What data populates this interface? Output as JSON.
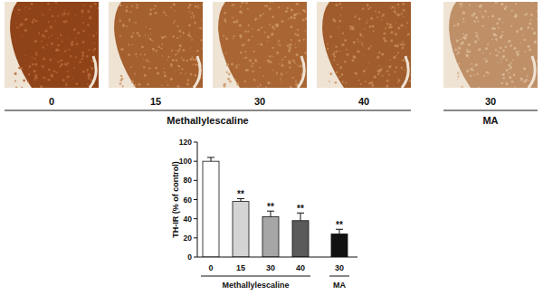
{
  "image_row": {
    "labels": [
      "0",
      "15",
      "30",
      "40",
      "30"
    ],
    "groups": [
      "Methallylescaline",
      "Methallylescaline",
      "Methallylescaline",
      "Methallylescaline",
      "MA"
    ]
  },
  "chart_data": {
    "type": "bar",
    "y_label": "TH-IR (% of control)",
    "categories": [
      "0",
      "15",
      "30",
      "40",
      "30"
    ],
    "category_groups": [
      "Methallylescaline",
      "Methallylescaline",
      "Methallylescaline",
      "Methallylescaline",
      "MA"
    ],
    "values": [
      100,
      58,
      42,
      38,
      24
    ],
    "errors": [
      4,
      3,
      6,
      8,
      5
    ],
    "significance": [
      null,
      "**",
      "**",
      "**",
      "**"
    ],
    "colors": [
      "#ffffff",
      "#d4d4d4",
      "#a6a6a6",
      "#5a5a5a",
      "#111111"
    ],
    "ylim": [
      0,
      120
    ],
    "yticks": [
      0,
      20,
      40,
      60,
      80,
      100,
      120
    ],
    "grid": false
  }
}
